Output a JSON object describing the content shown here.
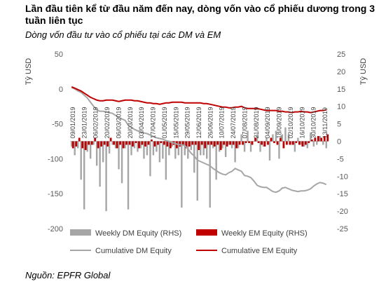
{
  "title": "Lần đầu tiên kể từ đầu năm đến nay, dòng vốn vào cổ phiếu dương trong 3 tuần liên tục",
  "subtitle": "Dòng vốn đầu tư vào cổ phiếu tại các DM và EM",
  "source": "Nguồn: EPFR Global",
  "colors": {
    "dm": "#a6a6a6",
    "em": "#c00000",
    "cum_dm": "#a6a6a6",
    "cum_em": "#c00000"
  },
  "chart_data": {
    "type": "bar",
    "ylabel": "Tỷ USD",
    "y2label": "Tỷ USD",
    "ylim": [
      -200,
      50
    ],
    "yticks": [
      50,
      0,
      -50,
      -100,
      -150,
      -200
    ],
    "y2lim": [
      -25,
      25
    ],
    "y2ticks": [
      25,
      20,
      15,
      10,
      5,
      0,
      -5,
      -10,
      -15,
      -20,
      -25
    ],
    "xtick_labels": [
      "09/01/2019",
      "23/01/2019",
      "06/02/2019",
      "20/02/2019",
      "06/03/2019",
      "20/03/2019",
      "03/04/2019",
      "17/04/2019",
      "01/05/2019",
      "15/05/2019",
      "29/05/2019",
      "12/06/2019",
      "26/06/2019",
      "10/07/2019",
      "24/07/2019",
      "07/08/2019",
      "21/08/2019",
      "04/09/2019",
      "18/09/2019",
      "02/10/2019",
      "16/10/2019",
      "30/10/2019",
      "13/11/2019"
    ],
    "legend": [
      {
        "label": "Weekly DM Equity (RHS)",
        "kind": "bar",
        "series": "dm"
      },
      {
        "label": "Weekly EM Equity (RHS)",
        "kind": "bar",
        "series": "em"
      },
      {
        "label": "Cumulative DM Equity",
        "kind": "line",
        "series": "cum_dm"
      },
      {
        "label": "Cumulative EM Equity",
        "kind": "line",
        "series": "cum_em"
      }
    ],
    "legend_position": "bottom",
    "series": [
      {
        "key": "dm",
        "name": "Weekly DM Equity (RHS)",
        "type": "bar",
        "axis": "right",
        "values": [
          -1.5,
          -4,
          -2,
          -11,
          -19.5,
          -3,
          -5,
          -1,
          -7,
          -13,
          -6,
          -20,
          -3.5,
          -1,
          -2,
          -8,
          -12,
          -2,
          -19.5,
          -4,
          -2,
          -3,
          -2,
          -5,
          -4,
          -10,
          -4,
          -3,
          -6,
          -5,
          -11,
          -4,
          -1.5,
          -5,
          -4,
          -19,
          -4,
          -5,
          -2.5,
          -9,
          -17,
          -4,
          -4,
          -5,
          -19,
          -2,
          -11,
          -3,
          -2,
          -4.5,
          -1,
          -2,
          -6,
          -2,
          2,
          -3,
          3,
          -3,
          0,
          2,
          -3,
          -1.5,
          1,
          -5.5,
          2,
          3,
          -5,
          2,
          4,
          2,
          -1,
          -3,
          1,
          -1,
          -1.5,
          -2,
          2.5,
          -1.5,
          -1,
          1.5,
          -1,
          -2
        ]
      },
      {
        "key": "em",
        "name": "Weekly EM Equity (RHS)",
        "type": "bar",
        "axis": "right",
        "values": [
          -2,
          -1.5,
          1,
          -2,
          -2.5,
          -1,
          -1,
          1,
          -2,
          -1.5,
          -1,
          -1.5,
          1,
          -1,
          -2,
          -1,
          -2,
          -1,
          -1,
          -1.5,
          -0.5,
          -2,
          -1,
          -1.5,
          -1,
          0.5,
          -1.5,
          -1,
          -0.5,
          -1,
          -1.5,
          -2,
          -1,
          -2,
          -1.5,
          -1,
          -2,
          -1.5,
          -1,
          -1,
          -2.5,
          -1,
          -2,
          -1,
          -1,
          -1.5,
          -1,
          -2.5,
          -1,
          -1.5,
          -1,
          -1,
          -2,
          -1,
          -1,
          -0.5,
          -0.5,
          -1,
          1,
          -0.5,
          -1,
          -1.5,
          -1,
          1,
          -0.5,
          -1,
          1,
          -2,
          -1,
          -1,
          -1,
          -0.5,
          -1,
          -1.5,
          -1,
          -0.5,
          0.5,
          1,
          1.5,
          1,
          1.5,
          2
        ]
      },
      {
        "key": "cum_dm",
        "name": "Cumulative DM Equity",
        "type": "line",
        "axis": "left",
        "values": [
          2,
          0,
          -3,
          -5,
          -9,
          -13,
          -19,
          -25,
          -30,
          -32,
          -32,
          -33,
          -34,
          -35,
          -38,
          -41,
          -43,
          -45,
          -52,
          -55,
          -58,
          -60,
          -62,
          -63,
          -64,
          -66,
          -68,
          -70,
          -71,
          -72,
          -74,
          -75,
          -77,
          -78,
          -80,
          -80,
          -81,
          -86,
          -92,
          -96,
          -102,
          -104,
          -106,
          -108,
          -110,
          -114,
          -117,
          -120,
          -122,
          -123,
          -120,
          -118,
          -114,
          -116,
          -118,
          -124,
          -125,
          -127,
          -132,
          -138,
          -140,
          -141,
          -141,
          -144,
          -147,
          -148,
          -146,
          -142,
          -141,
          -143,
          -145,
          -146,
          -147,
          -146,
          -146,
          -145,
          -143,
          -139,
          -136,
          -134,
          -135,
          -137
        ]
      },
      {
        "key": "cum_em",
        "name": "Cumulative EM Equity",
        "type": "line",
        "axis": "left",
        "values": [
          3,
          1,
          -1,
          -3,
          -6,
          -9,
          -12,
          -14,
          -16,
          -17,
          -17,
          -16,
          -16,
          -16,
          -17,
          -18,
          -17,
          -16,
          -16,
          -16,
          -17,
          -17,
          -18,
          -19,
          -20,
          -20,
          -21,
          -21,
          -22,
          -21,
          -20,
          -20,
          -19,
          -19,
          -19,
          -19,
          -20,
          -20,
          -20,
          -20,
          -20,
          -20,
          -21,
          -21,
          -22,
          -23,
          -24,
          -25,
          -26,
          -26,
          -27,
          -27,
          -26,
          -26,
          -25,
          -27,
          -28,
          -28,
          -28,
          -28,
          -29,
          -30,
          -31,
          -31,
          -31,
          -31,
          -32,
          -32,
          -33,
          -33,
          -34,
          -33,
          -33,
          -32,
          -33,
          -33,
          -34,
          -33,
          -32,
          -31,
          -31,
          -30
        ]
      }
    ]
  }
}
